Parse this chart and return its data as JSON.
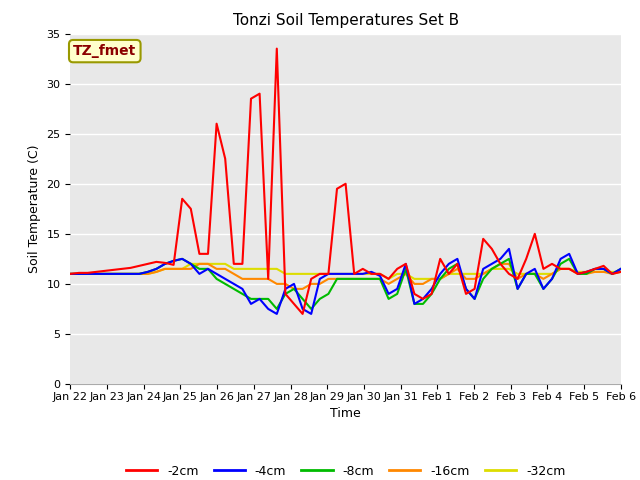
{
  "title": "Tonzi Soil Temperatures Set B",
  "xlabel": "Time",
  "ylabel": "Soil Temperature (C)",
  "ylim": [
    0,
    35
  ],
  "yticks": [
    0,
    5,
    10,
    15,
    20,
    25,
    30,
    35
  ],
  "plot_bg": "#e8e8e8",
  "fig_bg": "#ffffff",
  "annotation_text": "TZ_fmet",
  "annotation_color": "#8b0000",
  "annotation_bg": "#ffffcc",
  "annotation_border": "#999900",
  "series_colors": {
    "-2cm": "#ff0000",
    "-4cm": "#0000ff",
    "-8cm": "#00bb00",
    "-16cm": "#ff8800",
    "-32cm": "#dddd00"
  },
  "x_tick_labels": [
    "Jan 22",
    "Jan 23",
    "Jan 24",
    "Jan 25",
    "Jan 26",
    "Jan 27",
    "Jan 28",
    "Jan 29",
    "Jan 30",
    "Jan 31",
    "Feb 1",
    "Feb 2",
    "Feb 3",
    "Feb 4",
    "Feb 5",
    "Feb 6"
  ],
  "series": {
    "-2cm": [
      11.0,
      11.1,
      11.1,
      11.2,
      11.3,
      11.4,
      11.5,
      11.6,
      11.8,
      12.0,
      12.2,
      12.1,
      11.9,
      18.5,
      17.5,
      13.0,
      13.0,
      26.0,
      22.5,
      12.0,
      12.0,
      28.5,
      29.0,
      10.5,
      33.5,
      9.0,
      8.0,
      7.0,
      10.5,
      11.0,
      11.0,
      19.5,
      20.0,
      11.0,
      11.5,
      11.0,
      11.0,
      10.5,
      11.5,
      12.0,
      9.0,
      8.5,
      9.0,
      12.5,
      11.0,
      12.0,
      9.0,
      9.5,
      14.5,
      13.5,
      12.0,
      11.0,
      10.5,
      12.5,
      15.0,
      11.5,
      12.0,
      11.5,
      11.5,
      11.0,
      11.2,
      11.5,
      11.8,
      11.0,
      11.2
    ],
    "-4cm": [
      11.0,
      11.0,
      11.0,
      11.0,
      11.0,
      11.0,
      11.0,
      11.0,
      11.0,
      11.2,
      11.5,
      12.0,
      12.3,
      12.5,
      12.0,
      11.0,
      11.5,
      11.0,
      10.5,
      10.0,
      9.5,
      8.0,
      8.5,
      7.5,
      7.0,
      9.5,
      10.0,
      7.5,
      7.0,
      10.5,
      11.0,
      11.0,
      11.0,
      11.0,
      11.0,
      11.2,
      10.8,
      9.0,
      9.5,
      12.0,
      8.0,
      8.5,
      9.5,
      11.0,
      12.0,
      12.5,
      9.5,
      8.5,
      11.5,
      12.0,
      12.5,
      13.5,
      9.5,
      11.0,
      11.5,
      9.5,
      10.5,
      12.5,
      13.0,
      11.0,
      11.2,
      11.5,
      11.5,
      11.0,
      11.5
    ],
    "-8cm": [
      11.0,
      11.0,
      11.0,
      11.0,
      11.0,
      11.0,
      11.0,
      11.0,
      11.0,
      11.2,
      11.5,
      12.0,
      12.3,
      12.5,
      12.0,
      11.5,
      11.5,
      10.5,
      10.0,
      9.5,
      9.0,
      8.5,
      8.5,
      8.5,
      7.5,
      9.0,
      9.5,
      8.5,
      7.5,
      8.5,
      9.0,
      10.5,
      10.5,
      10.5,
      10.5,
      10.5,
      10.5,
      8.5,
      9.0,
      11.5,
      8.0,
      8.0,
      9.0,
      10.5,
      11.5,
      12.0,
      9.5,
      8.5,
      10.5,
      11.5,
      12.0,
      12.5,
      9.5,
      11.0,
      11.0,
      9.5,
      10.5,
      12.0,
      12.5,
      11.0,
      11.0,
      11.5,
      11.5,
      11.0,
      11.5
    ],
    "-16cm": [
      11.0,
      11.0,
      11.0,
      11.0,
      11.0,
      11.0,
      11.0,
      11.0,
      11.0,
      11.0,
      11.2,
      11.5,
      11.5,
      11.5,
      11.5,
      12.0,
      12.0,
      11.5,
      11.5,
      11.0,
      10.5,
      10.5,
      10.5,
      10.5,
      10.0,
      10.0,
      9.5,
      9.5,
      10.0,
      10.0,
      10.5,
      10.5,
      10.5,
      10.5,
      10.5,
      10.5,
      10.5,
      10.0,
      10.5,
      11.0,
      10.0,
      10.0,
      10.5,
      10.5,
      11.0,
      11.5,
      10.5,
      10.5,
      11.0,
      11.5,
      12.0,
      12.0,
      10.5,
      11.0,
      11.0,
      10.5,
      11.0,
      11.5,
      11.5,
      11.0,
      11.0,
      11.2,
      11.2,
      11.0,
      11.2
    ],
    "-32cm": [
      11.0,
      11.0,
      11.0,
      11.0,
      11.0,
      11.0,
      11.0,
      11.0,
      11.0,
      11.0,
      11.2,
      11.5,
      11.5,
      11.5,
      12.0,
      12.0,
      12.0,
      12.0,
      12.0,
      11.5,
      11.5,
      11.5,
      11.5,
      11.5,
      11.5,
      11.0,
      11.0,
      11.0,
      11.0,
      11.0,
      11.0,
      11.0,
      11.0,
      11.0,
      11.0,
      11.0,
      11.0,
      10.5,
      11.0,
      11.0,
      10.5,
      10.5,
      10.5,
      10.5,
      11.0,
      11.0,
      11.0,
      11.0,
      11.0,
      11.5,
      11.5,
      11.5,
      11.0,
      11.0,
      11.0,
      11.0,
      11.0,
      11.5,
      11.5,
      11.2,
      11.2,
      11.2,
      11.2,
      11.2,
      11.2
    ]
  }
}
